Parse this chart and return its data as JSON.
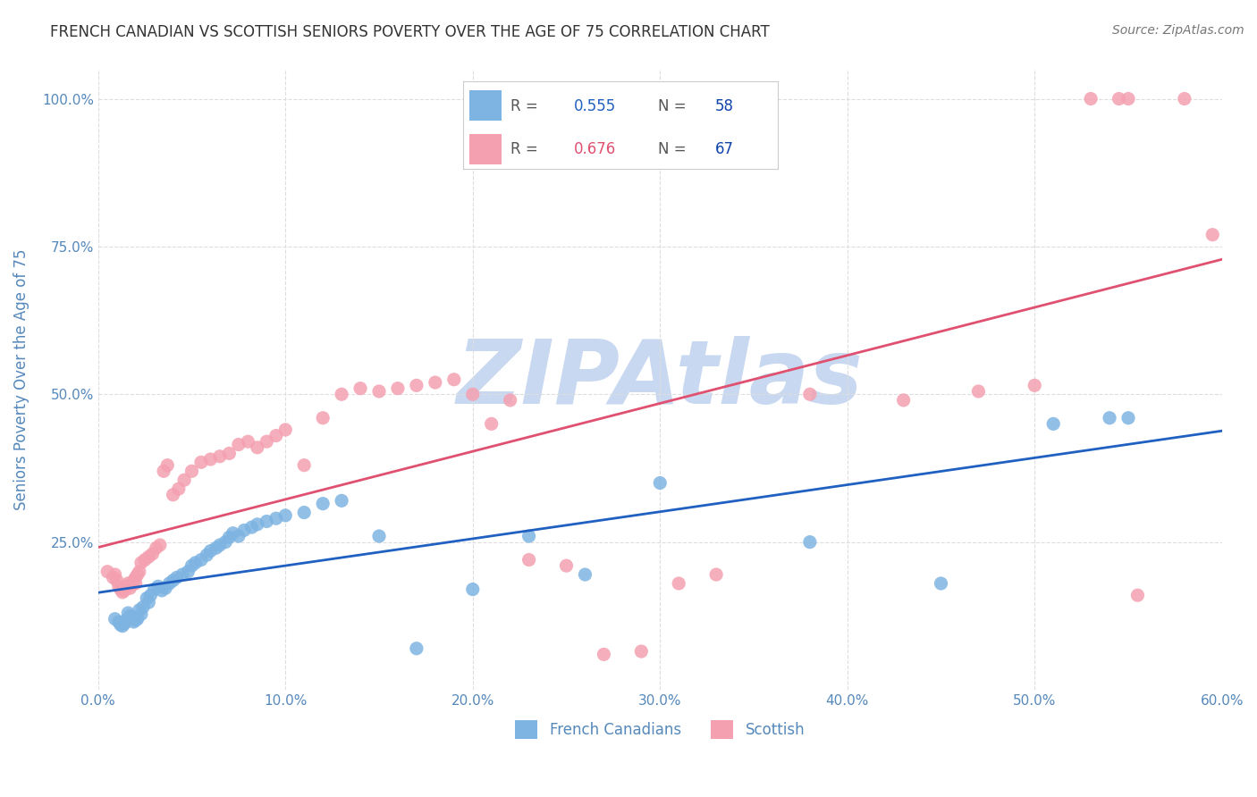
{
  "title": "FRENCH CANADIAN VS SCOTTISH SENIORS POVERTY OVER THE AGE OF 75 CORRELATION CHART",
  "source": "Source: ZipAtlas.com",
  "xlabel": "",
  "ylabel": "Seniors Poverty Over the Age of 75",
  "xlim": [
    0.0,
    0.6
  ],
  "ylim": [
    0.0,
    1.05
  ],
  "xticks": [
    0.0,
    0.1,
    0.2,
    0.3,
    0.4,
    0.5,
    0.6
  ],
  "yticks": [
    0.0,
    0.25,
    0.5,
    0.75,
    1.0
  ],
  "ytick_labels": [
    "",
    "25.0%",
    "50.0%",
    "75.0%",
    "100.0%"
  ],
  "xtick_labels": [
    "0.0%",
    "10.0%",
    "20.0%",
    "30.0%",
    "40.0%",
    "50.0%",
    "60.0%"
  ],
  "blue_R": 0.555,
  "blue_N": 58,
  "pink_R": 0.676,
  "pink_N": 67,
  "blue_color": "#7EB4E2",
  "pink_color": "#F4A0B0",
  "blue_line_color": "#2060C0",
  "pink_line_color": "#E05070",
  "title_color": "#333333",
  "axis_label_color": "#5588BB",
  "tick_label_color": "#5588BB",
  "legend_R_color": "#5588BB",
  "legend_N_color": "#1144AA",
  "watermark_color": "#C8D8F0",
  "grid_color": "#DDDDDD",
  "background_color": "#FFFFFF",
  "blue_x": [
    0.009,
    0.011,
    0.012,
    0.013,
    0.014,
    0.015,
    0.016,
    0.017,
    0.018,
    0.019,
    0.02,
    0.021,
    0.022,
    0.023,
    0.024,
    0.026,
    0.027,
    0.028,
    0.03,
    0.032,
    0.034,
    0.036,
    0.038,
    0.04,
    0.042,
    0.045,
    0.048,
    0.05,
    0.052,
    0.055,
    0.058,
    0.06,
    0.063,
    0.065,
    0.068,
    0.07,
    0.072,
    0.075,
    0.078,
    0.082,
    0.085,
    0.09,
    0.095,
    0.1,
    0.11,
    0.12,
    0.13,
    0.15,
    0.17,
    0.2,
    0.23,
    0.26,
    0.3,
    0.38,
    0.45,
    0.51,
    0.54,
    0.55
  ],
  "blue_y": [
    0.12,
    0.115,
    0.11,
    0.108,
    0.112,
    0.118,
    0.13,
    0.125,
    0.122,
    0.115,
    0.118,
    0.12,
    0.135,
    0.128,
    0.14,
    0.155,
    0.148,
    0.16,
    0.17,
    0.175,
    0.168,
    0.172,
    0.18,
    0.185,
    0.19,
    0.195,
    0.2,
    0.21,
    0.215,
    0.22,
    0.228,
    0.235,
    0.24,
    0.245,
    0.25,
    0.258,
    0.265,
    0.26,
    0.27,
    0.275,
    0.28,
    0.285,
    0.29,
    0.295,
    0.3,
    0.315,
    0.32,
    0.26,
    0.07,
    0.17,
    0.26,
    0.195,
    0.35,
    0.25,
    0.18,
    0.45,
    0.46,
    0.46
  ],
  "pink_x": [
    0.005,
    0.008,
    0.009,
    0.01,
    0.011,
    0.012,
    0.013,
    0.014,
    0.015,
    0.016,
    0.017,
    0.018,
    0.019,
    0.02,
    0.021,
    0.022,
    0.023,
    0.025,
    0.027,
    0.029,
    0.031,
    0.033,
    0.035,
    0.037,
    0.04,
    0.043,
    0.046,
    0.05,
    0.055,
    0.06,
    0.065,
    0.07,
    0.075,
    0.08,
    0.085,
    0.09,
    0.095,
    0.1,
    0.11,
    0.12,
    0.13,
    0.14,
    0.15,
    0.16,
    0.17,
    0.18,
    0.19,
    0.2,
    0.21,
    0.22,
    0.23,
    0.25,
    0.27,
    0.29,
    0.31,
    0.33,
    0.38,
    0.43,
    0.47,
    0.5,
    0.53,
    0.545,
    0.555,
    0.58,
    0.595,
    0.02,
    0.55
  ],
  "pink_y": [
    0.2,
    0.19,
    0.195,
    0.185,
    0.175,
    0.17,
    0.165,
    0.168,
    0.175,
    0.18,
    0.172,
    0.178,
    0.185,
    0.19,
    0.195,
    0.2,
    0.215,
    0.22,
    0.225,
    0.23,
    0.24,
    0.245,
    0.37,
    0.38,
    0.33,
    0.34,
    0.355,
    0.37,
    0.385,
    0.39,
    0.395,
    0.4,
    0.415,
    0.42,
    0.41,
    0.42,
    0.43,
    0.44,
    0.38,
    0.46,
    0.5,
    0.51,
    0.505,
    0.51,
    0.515,
    0.52,
    0.525,
    0.5,
    0.45,
    0.49,
    0.22,
    0.21,
    0.06,
    0.065,
    0.18,
    0.195,
    0.5,
    0.49,
    0.505,
    0.515,
    1.0,
    1.0,
    0.16,
    1.0,
    0.77,
    0.18,
    1.0
  ]
}
